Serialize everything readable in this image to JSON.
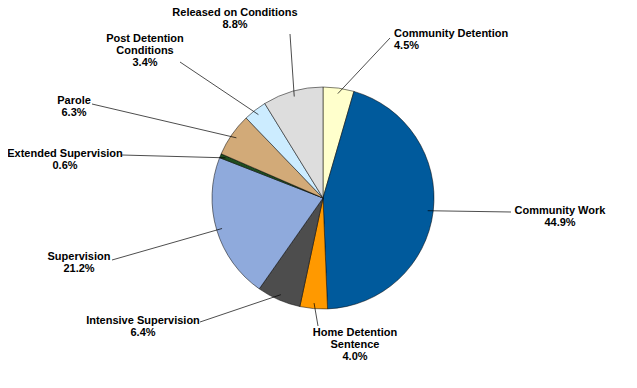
{
  "chart_data": {
    "type": "pie",
    "categories": [
      "Community Detention",
      "Community Work",
      "Home Detention Sentence",
      "Intensive Supervision",
      "Supervision",
      "Extended Supervision",
      "Parole",
      "Post Detention Conditions",
      "Released on Conditions"
    ],
    "values": [
      4.5,
      44.9,
      4.0,
      6.4,
      21.2,
      0.6,
      6.3,
      3.4,
      8.8
    ],
    "value_labels": [
      "4.5%",
      "44.9%",
      "4.0%",
      "6.4%",
      "21.2%",
      "0.6%",
      "6.3%",
      "3.4%",
      "8.8%"
    ],
    "colors": [
      "#ffffcc",
      "#005a9c",
      "#ff9900",
      "#4d4d4d",
      "#8faadc",
      "#1f4d1f",
      "#d2aa78",
      "#ccecff",
      "#dddddd"
    ],
    "data_labels": true
  }
}
